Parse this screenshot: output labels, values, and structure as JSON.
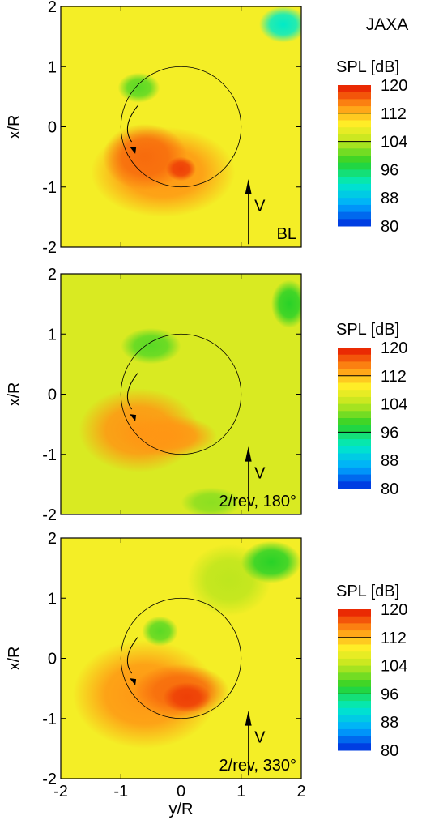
{
  "header": {
    "org_label": "JAXA"
  },
  "chart_data": [
    {
      "type": "heatmap",
      "panel_label": "BL",
      "xlabel": "y/R",
      "ylabel": "x/R",
      "xlim": [
        -2,
        2
      ],
      "ylim": [
        2,
        -2
      ],
      "x_ticks": [
        "-2",
        "-1",
        "0",
        "1",
        "2"
      ],
      "y_ticks": [
        "-2",
        "-1",
        "0",
        "1",
        "2"
      ],
      "show_x_tick_labels": false,
      "velocity_label": "V",
      "colorbar": {
        "title": "SPL [dB]",
        "min": 80,
        "max": 120,
        "ticks": [
          "120",
          "112",
          "104",
          "96",
          "88",
          "80"
        ],
        "line_at": [
          112,
          104
        ]
      },
      "background_level": 108,
      "blobs": [
        {
          "cx": -0.3,
          "cy": -0.75,
          "rx": 1.2,
          "ry": 0.75,
          "level": 114
        },
        {
          "cx": -0.6,
          "cy": -0.5,
          "rx": 0.7,
          "ry": 0.55,
          "level": 116
        },
        {
          "cx": 0.0,
          "cy": -0.7,
          "rx": 0.25,
          "ry": 0.2,
          "level": 118
        },
        {
          "cx": -0.7,
          "cy": 0.65,
          "rx": 0.35,
          "ry": 0.25,
          "level": 100
        },
        {
          "cx": 1.7,
          "cy": 1.7,
          "rx": 0.4,
          "ry": 0.3,
          "level": 92
        }
      ]
    },
    {
      "type": "heatmap",
      "panel_label": "2/rev, 180°",
      "xlabel": "y/R",
      "ylabel": "x/R",
      "xlim": [
        -2,
        2
      ],
      "ylim": [
        2,
        -2
      ],
      "x_ticks": [
        "-2",
        "-1",
        "0",
        "1",
        "2"
      ],
      "y_ticks": [
        "-2",
        "-1",
        "0",
        "1",
        "2"
      ],
      "show_x_tick_labels": false,
      "velocity_label": "V",
      "colorbar": {
        "title": "SPL [dB]",
        "min": 80,
        "max": 120,
        "ticks": [
          "120",
          "112",
          "104",
          "96",
          "88",
          "80"
        ],
        "line_at": [
          112,
          96
        ]
      },
      "background_level": 106,
      "blobs": [
        {
          "cx": -0.7,
          "cy": -0.6,
          "rx": 1.0,
          "ry": 0.7,
          "level": 114
        },
        {
          "cx": -0.2,
          "cy": -0.7,
          "rx": 0.8,
          "ry": 0.35,
          "level": 114
        },
        {
          "cx": 0.5,
          "cy": -1.8,
          "rx": 0.5,
          "ry": 0.25,
          "level": 102
        },
        {
          "cx": -0.5,
          "cy": 0.8,
          "rx": 0.5,
          "ry": 0.3,
          "level": 100
        },
        {
          "cx": 1.8,
          "cy": 1.5,
          "rx": 0.3,
          "ry": 0.4,
          "level": 98
        }
      ]
    },
    {
      "type": "heatmap",
      "panel_label": "2/rev, 330°",
      "xlabel": "y/R",
      "ylabel": "x/R",
      "xlim": [
        -2,
        2
      ],
      "ylim": [
        2,
        -2
      ],
      "x_ticks": [
        "-2",
        "-1",
        "0",
        "1",
        "2"
      ],
      "y_ticks": [
        "-2",
        "-1",
        "0",
        "1",
        "2"
      ],
      "show_x_tick_labels": true,
      "velocity_label": "V",
      "colorbar": {
        "title": "SPL [dB]",
        "min": 80,
        "max": 120,
        "ticks": [
          "120",
          "112",
          "104",
          "96",
          "88",
          "80"
        ],
        "line_at": [
          112,
          96
        ]
      },
      "background_level": 108,
      "blobs": [
        {
          "cx": -0.6,
          "cy": -0.6,
          "rx": 1.2,
          "ry": 0.9,
          "level": 114
        },
        {
          "cx": 0.0,
          "cy": -0.55,
          "rx": 0.8,
          "ry": 0.45,
          "level": 116
        },
        {
          "cx": 0.1,
          "cy": -0.65,
          "rx": 0.4,
          "ry": 0.25,
          "level": 118
        },
        {
          "cx": -0.35,
          "cy": 0.45,
          "rx": 0.3,
          "ry": 0.25,
          "level": 100
        },
        {
          "cx": 0.8,
          "cy": 1.3,
          "rx": 0.7,
          "ry": 0.6,
          "level": 104
        },
        {
          "cx": 1.5,
          "cy": 1.6,
          "rx": 0.5,
          "ry": 0.35,
          "level": 98
        }
      ]
    }
  ]
}
